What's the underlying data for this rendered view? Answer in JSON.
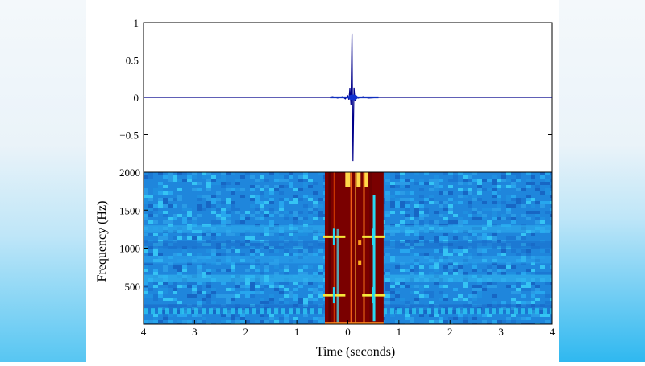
{
  "chart_data": [
    {
      "type": "line",
      "title": "",
      "xlabel": "",
      "ylabel": "",
      "ylim": [
        -1,
        1
      ],
      "yticks": [
        "1",
        "0.5",
        "0",
        "−0.5",
        "−1"
      ],
      "series": [
        {
          "x": [
            -4,
            -0.35,
            -0.3,
            -0.2,
            -0.1,
            -0.05,
            0.0,
            0.02,
            0.04,
            0.06,
            0.08,
            0.1,
            0.12,
            0.14,
            0.16,
            0.2,
            0.3,
            0.4,
            0.6,
            4
          ],
          "y": [
            0,
            0,
            0.01,
            -0.01,
            0.01,
            -0.02,
            0.02,
            -0.03,
            0.12,
            -0.1,
            0.85,
            -0.85,
            0.13,
            -0.05,
            0.02,
            -0.01,
            0.01,
            -0.01,
            0.0,
            0
          ]
        }
      ],
      "line_color": "#00008b"
    },
    {
      "type": "heatmap",
      "xlabel": "Time (seconds)",
      "ylabel": "Frequency (Hz)",
      "xlim": [
        -4,
        4
      ],
      "ylim": [
        0,
        2000
      ],
      "xticks": [
        "4",
        "3",
        "2",
        "1",
        "0",
        "1",
        "2",
        "3",
        "4"
      ],
      "yticks": [
        "2000",
        "1500",
        "1000",
        "500"
      ],
      "hot_region": [
        -0.45,
        0.7
      ],
      "hot_lines_hz": [
        1150,
        380
      ],
      "colors": {
        "background": "#1f86dc",
        "hot": "#7a0000",
        "cyan": "#28d8f2",
        "yellow": "#f5e83a"
      }
    }
  ]
}
